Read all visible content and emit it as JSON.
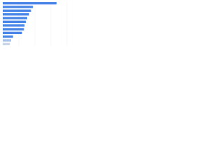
{
  "chart_data": {
    "type": "hbar",
    "categories": [
      null,
      null,
      null,
      null,
      null,
      null,
      null,
      null,
      null,
      null,
      null,
      null
    ],
    "values": [
      84,
      47,
      44,
      41,
      38,
      36,
      34,
      33,
      30,
      16,
      13,
      11
    ],
    "colors": [
      "#4a86e8",
      "#4a86e8",
      "#4a86e8",
      "#4a86e8",
      "#4a86e8",
      "#4a86e8",
      "#4a86e8",
      "#4a86e8",
      "#4a86e8",
      "#4a86e8",
      "#a9c4ea",
      "#c9d6e8"
    ],
    "xlim": [
      0,
      100
    ],
    "xticks": [
      0,
      25,
      50,
      75,
      100
    ],
    "grid": true
  }
}
